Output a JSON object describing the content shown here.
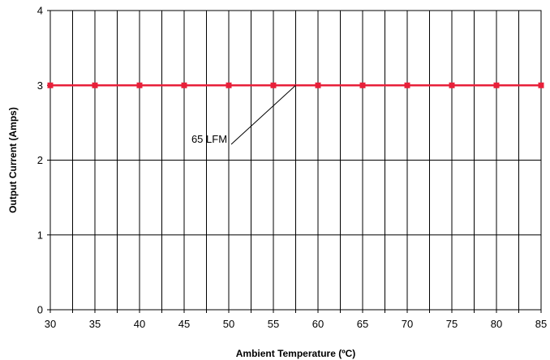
{
  "chart_data": {
    "type": "line",
    "xlabel": "Ambient Temperature (ºC)",
    "ylabel": "Output Current (Amps)",
    "xlim": [
      30,
      85
    ],
    "ylim": [
      0,
      4
    ],
    "x_ticks": [
      "30",
      "35",
      "40",
      "45",
      "50",
      "55",
      "60",
      "65",
      "70",
      "75",
      "80",
      "85"
    ],
    "y_ticks": [
      "0",
      "1",
      "2",
      "3",
      "4"
    ],
    "grid": true,
    "series": [
      {
        "name": "65 LFM",
        "color": "#e8203a",
        "x": [
          30,
          35,
          40,
          45,
          50,
          55,
          60,
          65,
          70,
          75,
          80,
          85
        ],
        "y": [
          3,
          3,
          3,
          3,
          3,
          3,
          3,
          3,
          3,
          3,
          3,
          3
        ]
      }
    ],
    "annotations": [
      {
        "text": "65 LFM",
        "points_to": {
          "x": 57.5,
          "y": 3
        }
      }
    ]
  }
}
